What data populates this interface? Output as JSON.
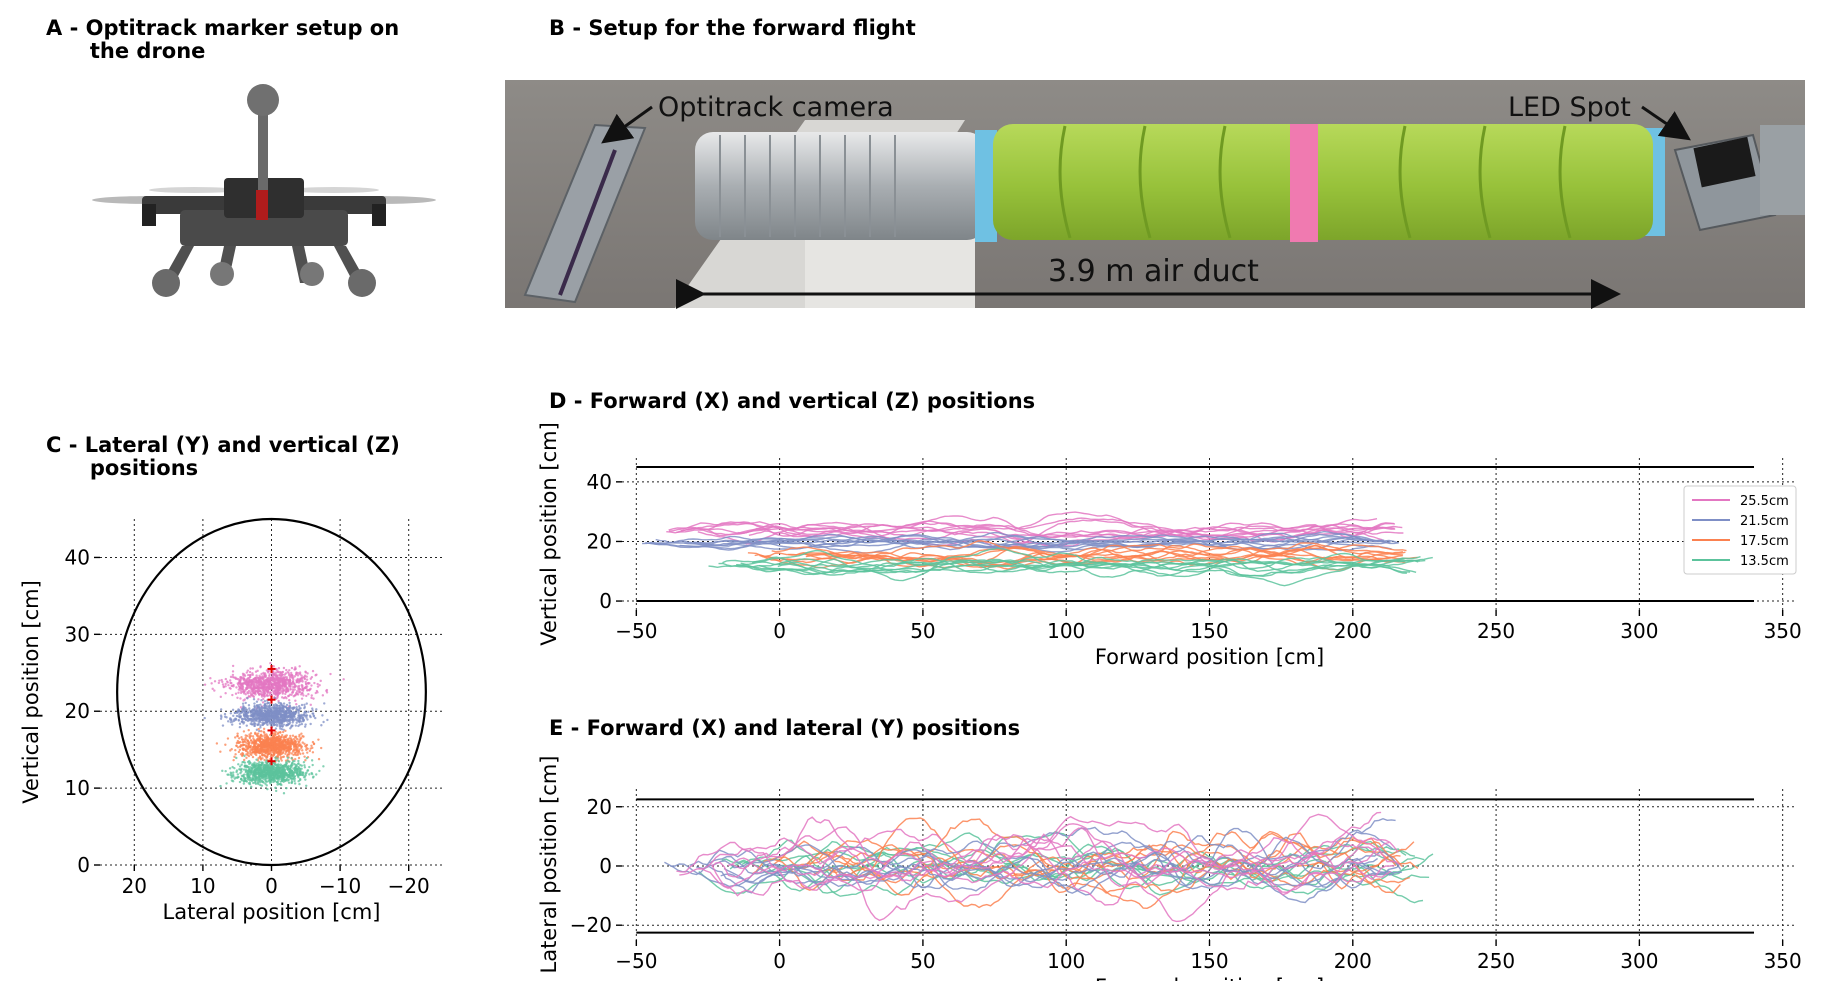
{
  "panels": {
    "a": {
      "title": "A - Optitrack marker setup on\n      the drone"
    },
    "b": {
      "title": "B - Setup for the forward flight",
      "label_camera": "Optitrack camera",
      "label_led": "LED Spot",
      "label_duct": "3.9 m air duct"
    },
    "c": {
      "title": "C - Lateral (Y) and vertical (Z)\n      positions"
    },
    "d": {
      "title": "D - Forward (X) and vertical (Z) positions"
    },
    "e": {
      "title": "E - Forward (X) and lateral (Y) positions"
    }
  },
  "colors": {
    "25.5cm": "#e377c2",
    "21.5cm": "#7f8fc6",
    "17.5cm": "#fb8150",
    "13.5cm": "#5cc39c",
    "marker": "#e00000",
    "boundary": "#000000"
  },
  "chart_data": [
    {
      "id": "C",
      "type": "scatter",
      "xlabel": "Lateral position [cm]",
      "ylabel": "Vertical position [cm]",
      "xlim": [
        25,
        -25
      ],
      "ylim": [
        0,
        45
      ],
      "xticks": [
        20,
        10,
        0,
        -10,
        -20
      ],
      "xtick_labels": [
        "20",
        "10",
        "0",
        "−10",
        "−20"
      ],
      "yticks": [
        0,
        10,
        20,
        30,
        40
      ],
      "ytick_labels": [
        "0",
        "10",
        "20",
        "30",
        "40"
      ],
      "grid": true,
      "boundary_circle": {
        "center": [
          0,
          22.5
        ],
        "radius": 22.5
      },
      "series": [
        {
          "name": "25.5cm",
          "center": [
            0,
            23.5
          ],
          "spread": [
            5.5,
            1.7
          ]
        },
        {
          "name": "21.5cm",
          "center": [
            0,
            19.5
          ],
          "spread": [
            5.0,
            1.2
          ]
        },
        {
          "name": "17.5cm",
          "center": [
            0,
            15.5
          ],
          "spread": [
            4.5,
            1.4
          ]
        },
        {
          "name": "13.5cm",
          "center": [
            0,
            12.0
          ],
          "spread": [
            4.5,
            1.3
          ]
        }
      ],
      "target_markers": [
        [
          0,
          25.5
        ],
        [
          0,
          21.5
        ],
        [
          0,
          17.5
        ],
        [
          0,
          13.5
        ]
      ]
    },
    {
      "id": "D",
      "type": "line",
      "xlabel": "Forward position [cm]",
      "ylabel": "Vertical position [cm]",
      "xlim": [
        -55,
        355
      ],
      "ylim": [
        -3,
        48
      ],
      "xticks": [
        -50,
        0,
        50,
        100,
        150,
        200,
        250,
        300,
        350
      ],
      "xtick_labels": [
        "−50",
        "0",
        "50",
        "100",
        "150",
        "200",
        "250",
        "300",
        "350"
      ],
      "yticks": [
        0,
        20,
        40
      ],
      "ytick_labels": [
        "0",
        "20",
        "40"
      ],
      "grid": true,
      "duct_walls": [
        0,
        45
      ],
      "duct_x": [
        -50,
        340
      ],
      "legend": {
        "placement": "right",
        "entries": [
          "25.5cm",
          "21.5cm",
          "17.5cm",
          "13.5cm"
        ]
      },
      "series": [
        {
          "name": "25.5cm",
          "x_start": -40,
          "x_end": 218,
          "mean": 23.0,
          "noise": 1.6
        },
        {
          "name": "21.5cm",
          "x_start": -48,
          "x_end": 218,
          "mean": 19.5,
          "noise": 1.2
        },
        {
          "name": "17.5cm",
          "x_start": -12,
          "x_end": 223,
          "mean": 15.5,
          "noise": 1.4
        },
        {
          "name": "13.5cm",
          "x_start": -30,
          "x_end": 228,
          "mean": 12.0,
          "noise": 1.4
        }
      ]
    },
    {
      "id": "E",
      "type": "line",
      "xlabel": "Forward position [cm]",
      "ylabel": "Lateral position [cm]",
      "xlim": [
        -55,
        355
      ],
      "ylim": [
        -25,
        26
      ],
      "xticks": [
        -50,
        0,
        50,
        100,
        150,
        200,
        250,
        300,
        350
      ],
      "xtick_labels": [
        "−50",
        "0",
        "50",
        "100",
        "150",
        "200",
        "250",
        "300",
        "350"
      ],
      "yticks": [
        -20,
        0,
        20
      ],
      "ytick_labels": [
        "−20",
        "0",
        "20"
      ],
      "grid": true,
      "duct_walls": [
        -22.5,
        22.5
      ],
      "duct_x": [
        -50,
        340
      ],
      "series": [
        {
          "name": "13.5cm",
          "x_start": -30,
          "x_end": 228,
          "mean": 0,
          "noise": 4.0
        },
        {
          "name": "17.5cm",
          "x_start": -12,
          "x_end": 223,
          "mean": 0,
          "noise": 4.5
        },
        {
          "name": "21.5cm",
          "x_start": -48,
          "x_end": 218,
          "mean": 0,
          "noise": 4.5
        },
        {
          "name": "25.5cm",
          "x_start": -40,
          "x_end": 218,
          "mean": 0,
          "noise": 5.5
        }
      ]
    }
  ]
}
